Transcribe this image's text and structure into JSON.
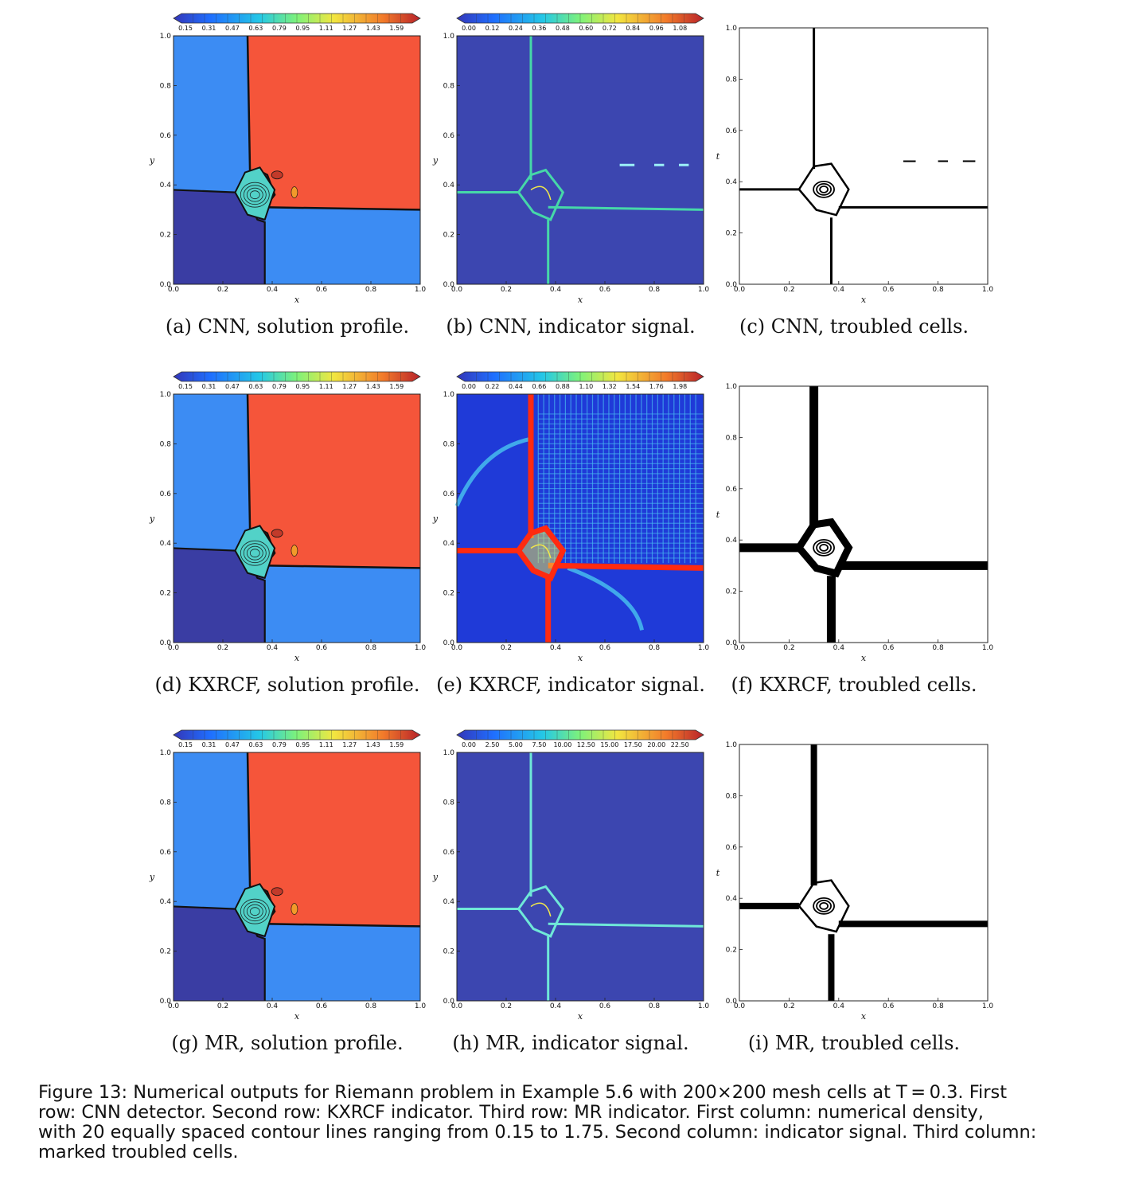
{
  "axis": {
    "ticks": [
      "0.0",
      "0.2",
      "0.4",
      "0.6",
      "0.8",
      "1.0"
    ],
    "xlabel": "x",
    "ylabel_solution": "y",
    "ylabel_indicator": "y",
    "ylabel_troubled": "t"
  },
  "colorbars": {
    "solution": [
      "0.15",
      "0.31",
      "0.47",
      "0.63",
      "0.79",
      "0.95",
      "1.11",
      "1.27",
      "1.43",
      "1.59"
    ],
    "cnn_signal": [
      "0.00",
      "0.12",
      "0.24",
      "0.36",
      "0.48",
      "0.60",
      "0.72",
      "0.84",
      "0.96",
      "1.08"
    ],
    "kxrcf_signal": [
      "0.00",
      "0.22",
      "0.44",
      "0.66",
      "0.88",
      "1.10",
      "1.32",
      "1.54",
      "1.76",
      "1.98"
    ],
    "mr_signal": [
      "0.00",
      "2.50",
      "5.00",
      "7.50",
      "10.00",
      "12.50",
      "15.00",
      "17.50",
      "20.00",
      "22.50"
    ]
  },
  "palette": {
    "high_density": "#f5553a",
    "mid_density": "#3c8cf3",
    "low_density": "#3a3da3",
    "signal_background": "#3c46b0"
  },
  "subcaptions": {
    "a": "(a) CNN, solution profile.",
    "b": "(b) CNN, indicator signal.",
    "c": "(c) CNN, troubled cells.",
    "d": "(d) KXRCF, solution profile.",
    "e": "(e) KXRCF, indicator signal.",
    "f": "(f) KXRCF, troubled cells.",
    "g": "(g) MR, solution profile.",
    "h": "(h) MR, indicator signal.",
    "i": "(i) MR, troubled cells."
  },
  "caption": {
    "line1": "Figure 13: Numerical outputs for Riemann problem in Example 5.6 with 200×200 mesh cells at T = 0.3. First",
    "line2": "row: CNN detector. Second row: KXRCF indicator. Third row: MR indicator. First column: numerical density,",
    "line3": "with 20 equally spaced contour lines ranging from 0.15 to 1.75. Second column: indicator signal. Third column:",
    "line4": "marked troubled cells."
  }
}
